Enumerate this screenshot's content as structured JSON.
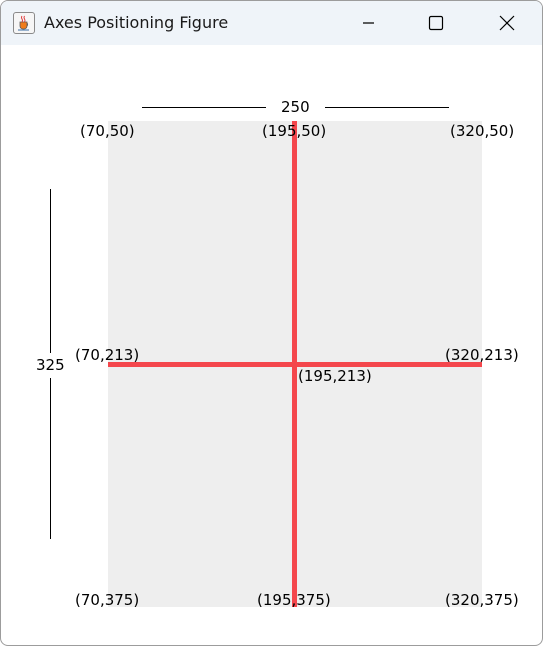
{
  "window": {
    "title": "Axes Positioning Figure",
    "app_icon": "java-coffee-cup-icon"
  },
  "controls": {
    "minimize_icon": "minimize-icon",
    "maximize_icon": "maximize-icon",
    "close_icon": "close-icon"
  },
  "figure": {
    "width_label": "250",
    "height_label": "325",
    "background_color": "#eeeeee",
    "axis_color": "#f4464c",
    "coordinates": {
      "top_left": "(70,50)",
      "top_center": "(195,50)",
      "top_right": "(320,50)",
      "middle_left": "(70,213)",
      "center": "(195,213)",
      "middle_right": "(320,213)",
      "bottom_left": "(70,375)",
      "bottom_center": "(195,375)",
      "bottom_right": "(320,375)"
    }
  }
}
